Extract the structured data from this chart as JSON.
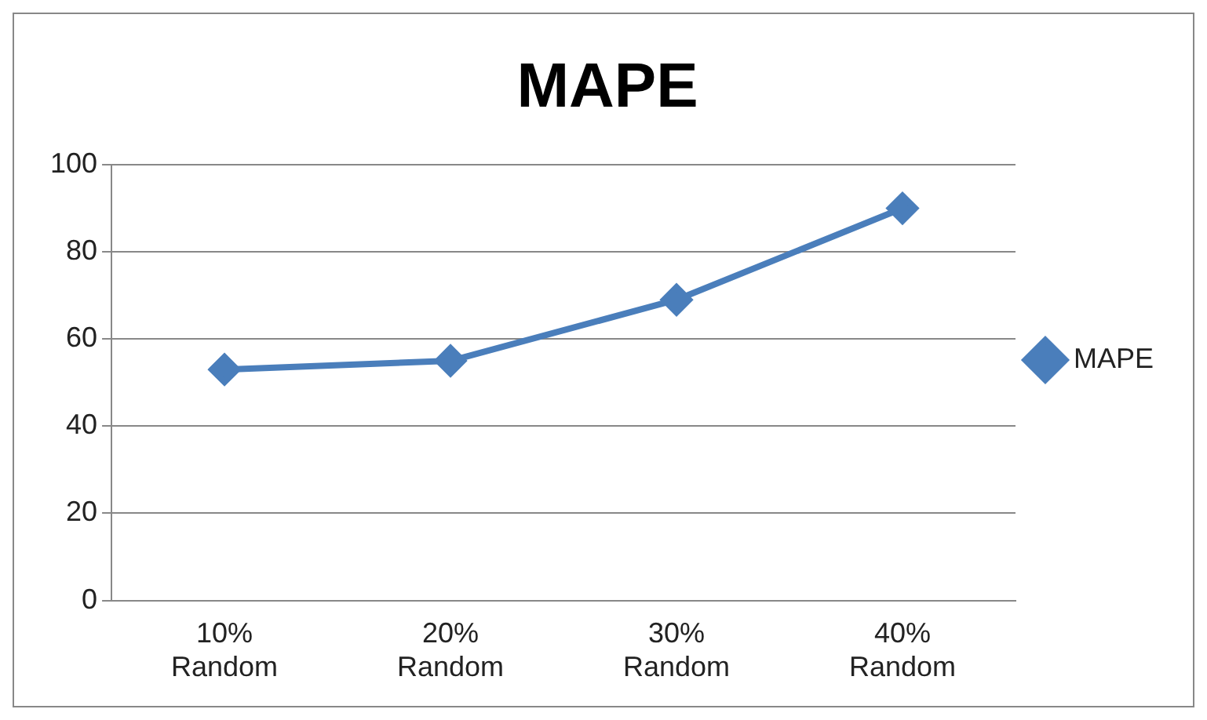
{
  "chart_data": {
    "type": "line",
    "title": "MAPE",
    "categories": [
      "10% Random",
      "20% Random",
      "30% Random",
      "40% Random"
    ],
    "series": [
      {
        "name": "MAPE",
        "color": "#4a7ebb",
        "values": [
          53,
          55,
          69,
          90
        ]
      }
    ],
    "ylim": [
      0,
      100
    ],
    "yticks": [
      0,
      20,
      40,
      60,
      80,
      100
    ],
    "grid": "y",
    "legend": "right",
    "marker": "diamond",
    "line_style": "solid"
  }
}
